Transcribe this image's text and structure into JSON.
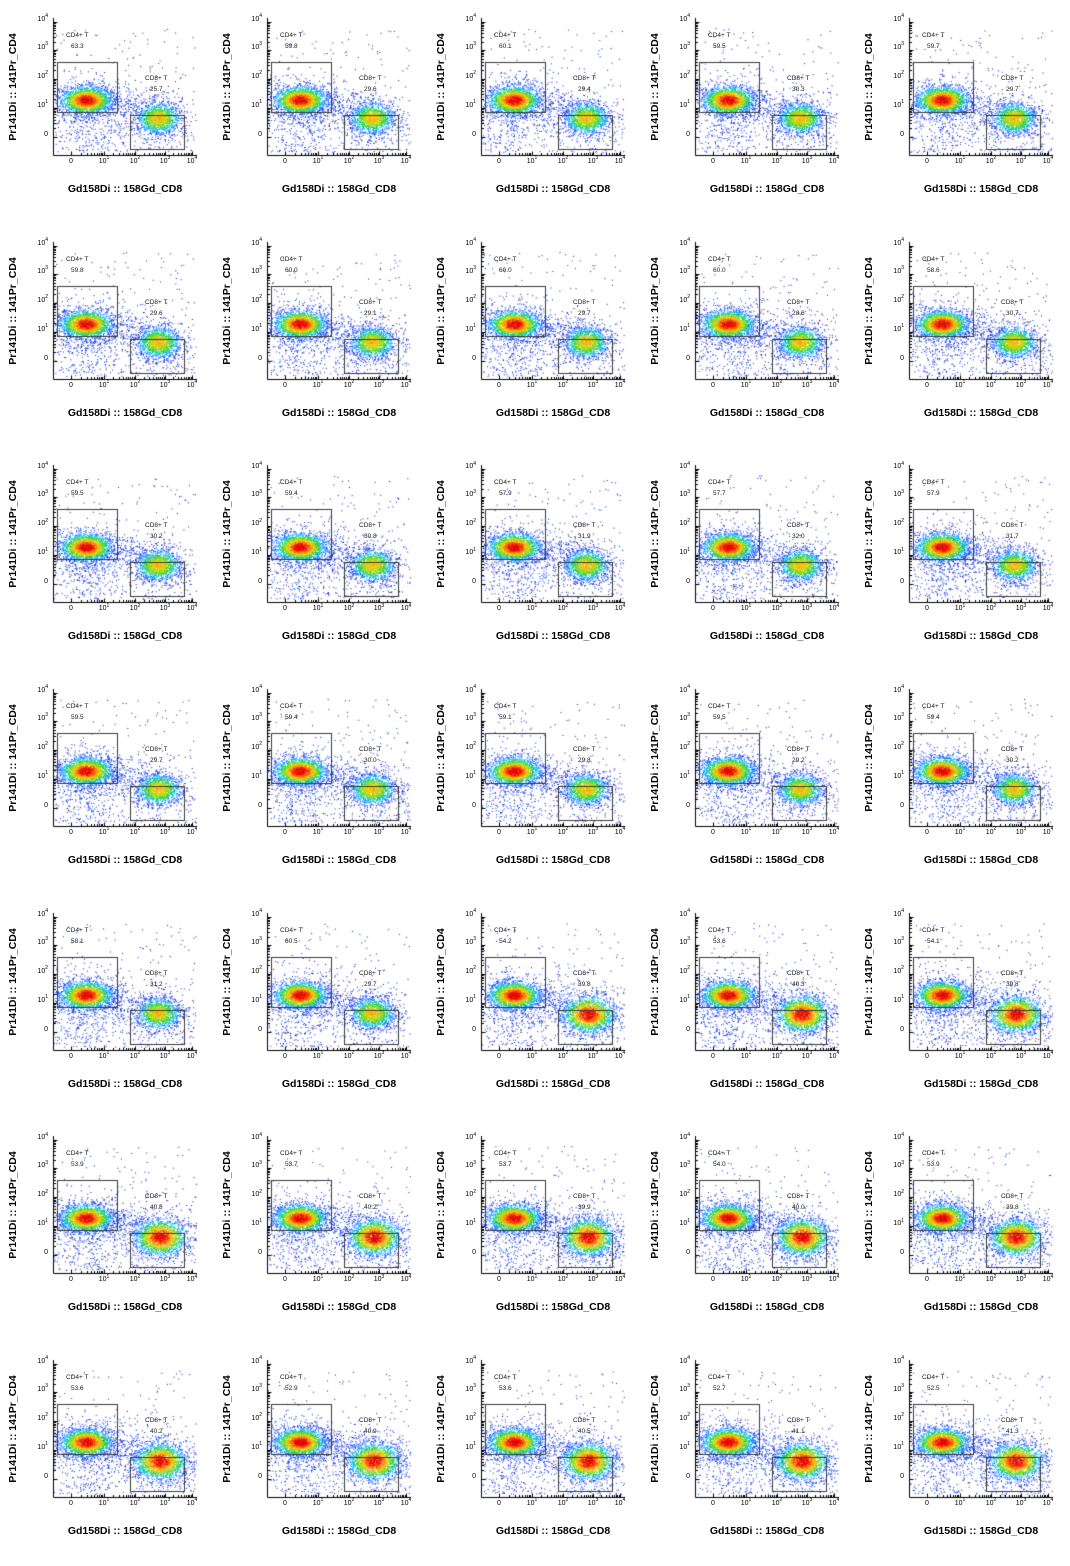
{
  "chart_data": {
    "type": "scatter",
    "description": "Grid of flow cytometry pseudocolor density plots with CD4+ T and CD8+ T gates",
    "grid": {
      "rows": 7,
      "cols": 5
    },
    "xlabel": "Gd158Di :: 158Gd_CD8",
    "ylabel": "Pr141Di :: 141Pr_CD4",
    "x_scale": "biexponential",
    "y_scale": "biexponential",
    "x_ticks": [
      "0",
      "10^1",
      "10^2",
      "10^3",
      "10^4"
    ],
    "y_ticks": [
      "0",
      "10^1",
      "10^2",
      "10^3",
      "10^4"
    ],
    "legend": "none",
    "gates": {
      "cd4": {
        "label": "CD4+ T",
        "position": "upper-left"
      },
      "cd8": {
        "label": "CD8+ T",
        "position": "lower-right"
      }
    },
    "plots": [
      {
        "row": 1,
        "col": 1,
        "cd4_pct": "63.3",
        "cd8_pct": "25.7"
      },
      {
        "row": 1,
        "col": 2,
        "cd4_pct": "59.8",
        "cd8_pct": "29.6"
      },
      {
        "row": 1,
        "col": 3,
        "cd4_pct": "60.1",
        "cd8_pct": "29.4"
      },
      {
        "row": 1,
        "col": 4,
        "cd4_pct": "59.5",
        "cd8_pct": "30.3"
      },
      {
        "row": 1,
        "col": 5,
        "cd4_pct": "59.7",
        "cd8_pct": "29.7"
      },
      {
        "row": 2,
        "col": 1,
        "cd4_pct": "59.8",
        "cd8_pct": "29.6"
      },
      {
        "row": 2,
        "col": 2,
        "cd4_pct": "60.0",
        "cd8_pct": "29.1"
      },
      {
        "row": 2,
        "col": 3,
        "cd4_pct": "60.0",
        "cd8_pct": "29.7"
      },
      {
        "row": 2,
        "col": 4,
        "cd4_pct": "60.0",
        "cd8_pct": "28.6"
      },
      {
        "row": 2,
        "col": 5,
        "cd4_pct": "58.6",
        "cd8_pct": "30.7"
      },
      {
        "row": 3,
        "col": 1,
        "cd4_pct": "59.5",
        "cd8_pct": "30.2"
      },
      {
        "row": 3,
        "col": 2,
        "cd4_pct": "59.4",
        "cd8_pct": "30.8"
      },
      {
        "row": 3,
        "col": 3,
        "cd4_pct": "57.9",
        "cd8_pct": "31.9"
      },
      {
        "row": 3,
        "col": 4,
        "cd4_pct": "57.7",
        "cd8_pct": "32.0"
      },
      {
        "row": 3,
        "col": 5,
        "cd4_pct": "57.9",
        "cd8_pct": "31.7"
      },
      {
        "row": 4,
        "col": 1,
        "cd4_pct": "59.5",
        "cd8_pct": "29.7"
      },
      {
        "row": 4,
        "col": 2,
        "cd4_pct": "59.4",
        "cd8_pct": "30.0"
      },
      {
        "row": 4,
        "col": 3,
        "cd4_pct": "59.1",
        "cd8_pct": "29.8"
      },
      {
        "row": 4,
        "col": 4,
        "cd4_pct": "59.5",
        "cd8_pct": "29.2"
      },
      {
        "row": 4,
        "col": 5,
        "cd4_pct": "59.4",
        "cd8_pct": "30.2"
      },
      {
        "row": 5,
        "col": 1,
        "cd4_pct": "58.1",
        "cd8_pct": "31.2"
      },
      {
        "row": 5,
        "col": 2,
        "cd4_pct": "60.5",
        "cd8_pct": "29.7"
      },
      {
        "row": 5,
        "col": 3,
        "cd4_pct": "54.2",
        "cd8_pct": "39.8"
      },
      {
        "row": 5,
        "col": 4,
        "cd4_pct": "53.6",
        "cd8_pct": "40.3"
      },
      {
        "row": 5,
        "col": 5,
        "cd4_pct": "54.1",
        "cd8_pct": "39.8"
      },
      {
        "row": 6,
        "col": 1,
        "cd4_pct": "53.9",
        "cd8_pct": "40.8"
      },
      {
        "row": 6,
        "col": 2,
        "cd4_pct": "53.7",
        "cd8_pct": "40.2"
      },
      {
        "row": 6,
        "col": 3,
        "cd4_pct": "53.7",
        "cd8_pct": "39.9"
      },
      {
        "row": 6,
        "col": 4,
        "cd4_pct": "54.0",
        "cd8_pct": "40.0"
      },
      {
        "row": 6,
        "col": 5,
        "cd4_pct": "53.9",
        "cd8_pct": "39.8"
      },
      {
        "row": 7,
        "col": 1,
        "cd4_pct": "53.6",
        "cd8_pct": "40.2"
      },
      {
        "row": 7,
        "col": 2,
        "cd4_pct": "52.9",
        "cd8_pct": "40.9"
      },
      {
        "row": 7,
        "col": 3,
        "cd4_pct": "53.6",
        "cd8_pct": "40.5"
      },
      {
        "row": 7,
        "col": 4,
        "cd4_pct": "52.7",
        "cd8_pct": "41.1"
      },
      {
        "row": 7,
        "col": 5,
        "cd4_pct": "52.5",
        "cd8_pct": "41.3"
      }
    ]
  },
  "style": {
    "background": "#ffffff",
    "axis_color": "#000000",
    "gate_color": "#3a3a3a",
    "density_colormap": "jet",
    "colormap_stops": [
      "#00008f",
      "#003cff",
      "#00c8ff",
      "#28d23c",
      "#a0dc00",
      "#ffc800",
      "#ff6400",
      "#e60000"
    ]
  }
}
